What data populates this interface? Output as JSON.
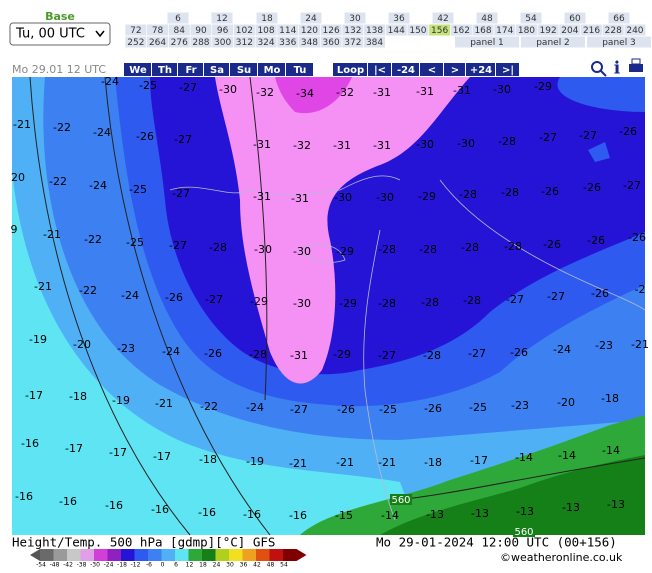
{
  "header": {
    "base_label": "Base",
    "base_select": "Tu, 00 UTC",
    "hours": [
      [
        "6",
        "12",
        "18",
        "24",
        "30",
        "36",
        "42",
        "48",
        "54",
        "60",
        "66"
      ],
      [
        "72",
        "78",
        "84",
        "90",
        "96",
        "102",
        "108",
        "114",
        "120",
        "126",
        "132",
        "138",
        "144",
        "150",
        "156",
        "162",
        "168",
        "174",
        "180",
        "192",
        "204",
        "216",
        "228",
        "240"
      ],
      [
        "252",
        "264",
        "276",
        "288",
        "300",
        "312",
        "324",
        "336",
        "348",
        "360",
        "372",
        "384"
      ]
    ],
    "panels": [
      "panel 1",
      "panel 2",
      "panel 3"
    ]
  },
  "nav": {
    "date": "Mo 29.01 12 UTC",
    "days": [
      "We",
      "Th",
      "Fr",
      "Sa",
      "Su",
      "Mo",
      "Tu"
    ],
    "controls": [
      "Loop",
      "|<",
      "-24",
      "<",
      ">",
      "+24",
      ">|"
    ],
    "info": "i"
  },
  "map": {
    "rows": [
      [
        "-24",
        "-25",
        "-27",
        "-30",
        "-32",
        "-34",
        "-32",
        "-31",
        "-31",
        "-31",
        "-30",
        "-29"
      ],
      [
        "-21",
        "-22",
        "-24",
        "-26",
        "-27",
        "-31",
        "-32",
        "-31",
        "-31",
        "-30",
        "-30",
        "-28",
        "-27",
        "-27",
        "-26"
      ],
      [
        "20",
        "-22",
        "-24",
        "-25",
        "-27",
        "-31",
        "-31",
        "-30",
        "-30",
        "-29",
        "-28",
        "-28",
        "-26",
        "-26",
        "-27"
      ],
      [
        "9",
        "-21",
        "-22",
        "-25",
        "-27",
        "-28",
        "-30",
        "-30",
        "-29",
        "-28",
        "-28",
        "-28",
        "-28",
        "-26",
        "-26",
        "-26"
      ],
      [
        "-21",
        "-22",
        "-24",
        "-26",
        "-27",
        "-29",
        "-30",
        "-29",
        "-28",
        "-28",
        "-28",
        "-27",
        "-27",
        "-26",
        "-2"
      ],
      [
        "-19",
        "-20",
        "-23",
        "-24",
        "-26",
        "-28",
        "-31",
        "-29",
        "-27",
        "-28",
        "-27",
        "-26",
        "-24",
        "-23",
        "-21"
      ],
      [
        "-17",
        "-18",
        "-19",
        "-21",
        "-22",
        "-24",
        "-27",
        "-26",
        "-25",
        "-26",
        "-25",
        "-23",
        "-20",
        "-18"
      ],
      [
        "-16",
        "-17",
        "-17",
        "-17",
        "-18",
        "-19",
        "-21",
        "-21",
        "-21",
        "-18",
        "-17",
        "-14",
        "-14",
        "-14"
      ],
      [
        "-16",
        "-16",
        "-16",
        "-16",
        "-16",
        "-16",
        "-16",
        "-15",
        "-14",
        "-13",
        "-13",
        "-13",
        "-13",
        "-13"
      ]
    ],
    "contours": [
      "560",
      "560"
    ]
  },
  "footer": {
    "title": "Height/Temp. 500 hPa [gdmp][°C] GFS",
    "date": "Mo 29-01-2024 12:00 UTC (00+156)",
    "credit": "©weatheronline.co.uk",
    "scale": [
      "-54",
      "-48",
      "-42",
      "-38",
      "-30",
      "-24",
      "-18",
      "-12",
      "-6",
      "0",
      "6",
      "12",
      "18",
      "24",
      "30",
      "36",
      "42",
      "48",
      "54"
    ]
  }
}
